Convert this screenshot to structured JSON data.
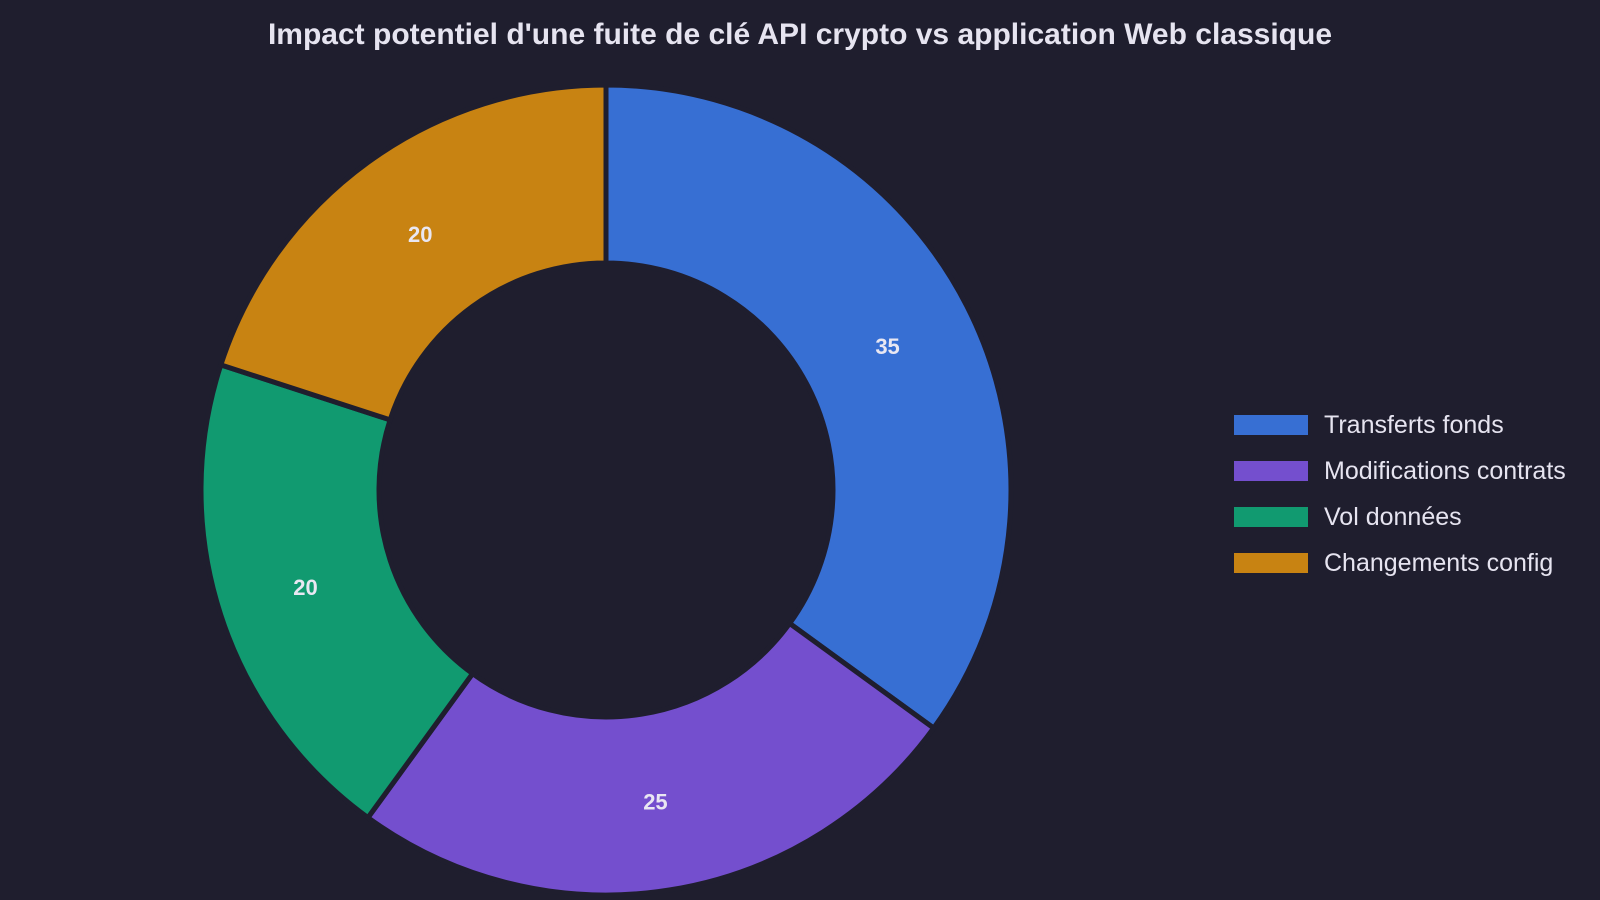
{
  "chart_data": {
    "type": "pie",
    "title": "Impact potentiel d'une fuite de clé API crypto vs application Web classique",
    "donut": true,
    "categories": [
      "Transferts fonds",
      "Modifications contrats",
      "Vol données",
      "Changements config"
    ],
    "values": [
      35,
      25,
      20,
      20
    ],
    "colors": [
      "#376fd3",
      "#744fce",
      "#119a70",
      "#c88312"
    ],
    "data_labels": [
      "35",
      "25",
      "20",
      "20"
    ],
    "legend_position": "right"
  }
}
